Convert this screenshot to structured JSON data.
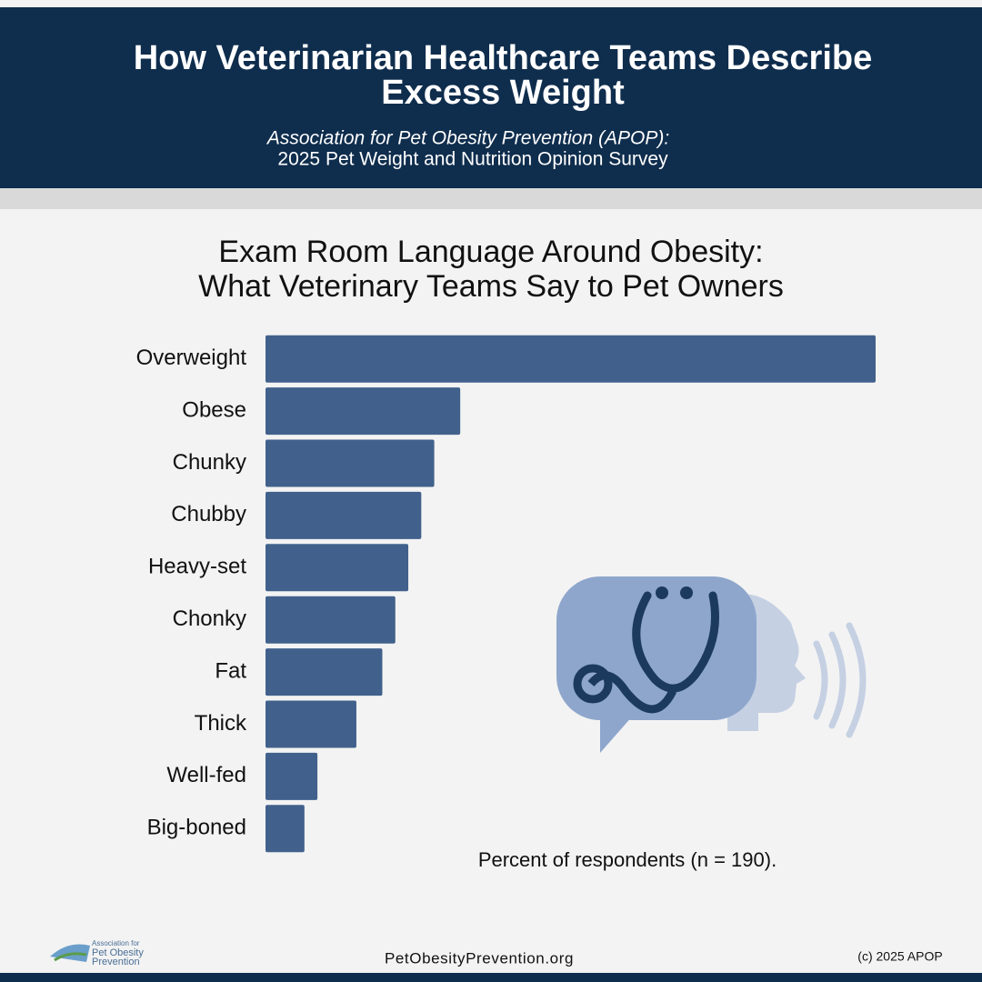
{
  "header": {
    "title": [
      "How Veterinarian Healthcare Teams Describe",
      "Excess Weight"
    ],
    "subtitle": [
      "Association for Pet Obesity Prevention (APOP):",
      "2025 Pet Weight and Nutrition Opinion Survey"
    ]
  },
  "chart_data": {
    "type": "bar",
    "orientation": "horizontal",
    "title": [
      "Exam Room Language Around Obesity:",
      "What Veterinary Teams Say to Pet Owners"
    ],
    "categories": [
      "Overweight",
      "Obese",
      "Chunky",
      "Chubby",
      "Heavy-set",
      "Chonky",
      "Fat",
      "Thick",
      "Well-fed",
      "Big-boned"
    ],
    "values": [
      94,
      30,
      26,
      24,
      22,
      20,
      18,
      14,
      8,
      6
    ],
    "color": "#41618c",
    "xlim": [
      0,
      94
    ],
    "x_label": "Percent of respondents (n = 190)."
  },
  "footer": {
    "logo": [
      "Association for",
      "Pet Obesity",
      "Prevention"
    ],
    "website": "PetObesityPrevention.org",
    "copyright": "(c) 2025 APOP"
  }
}
